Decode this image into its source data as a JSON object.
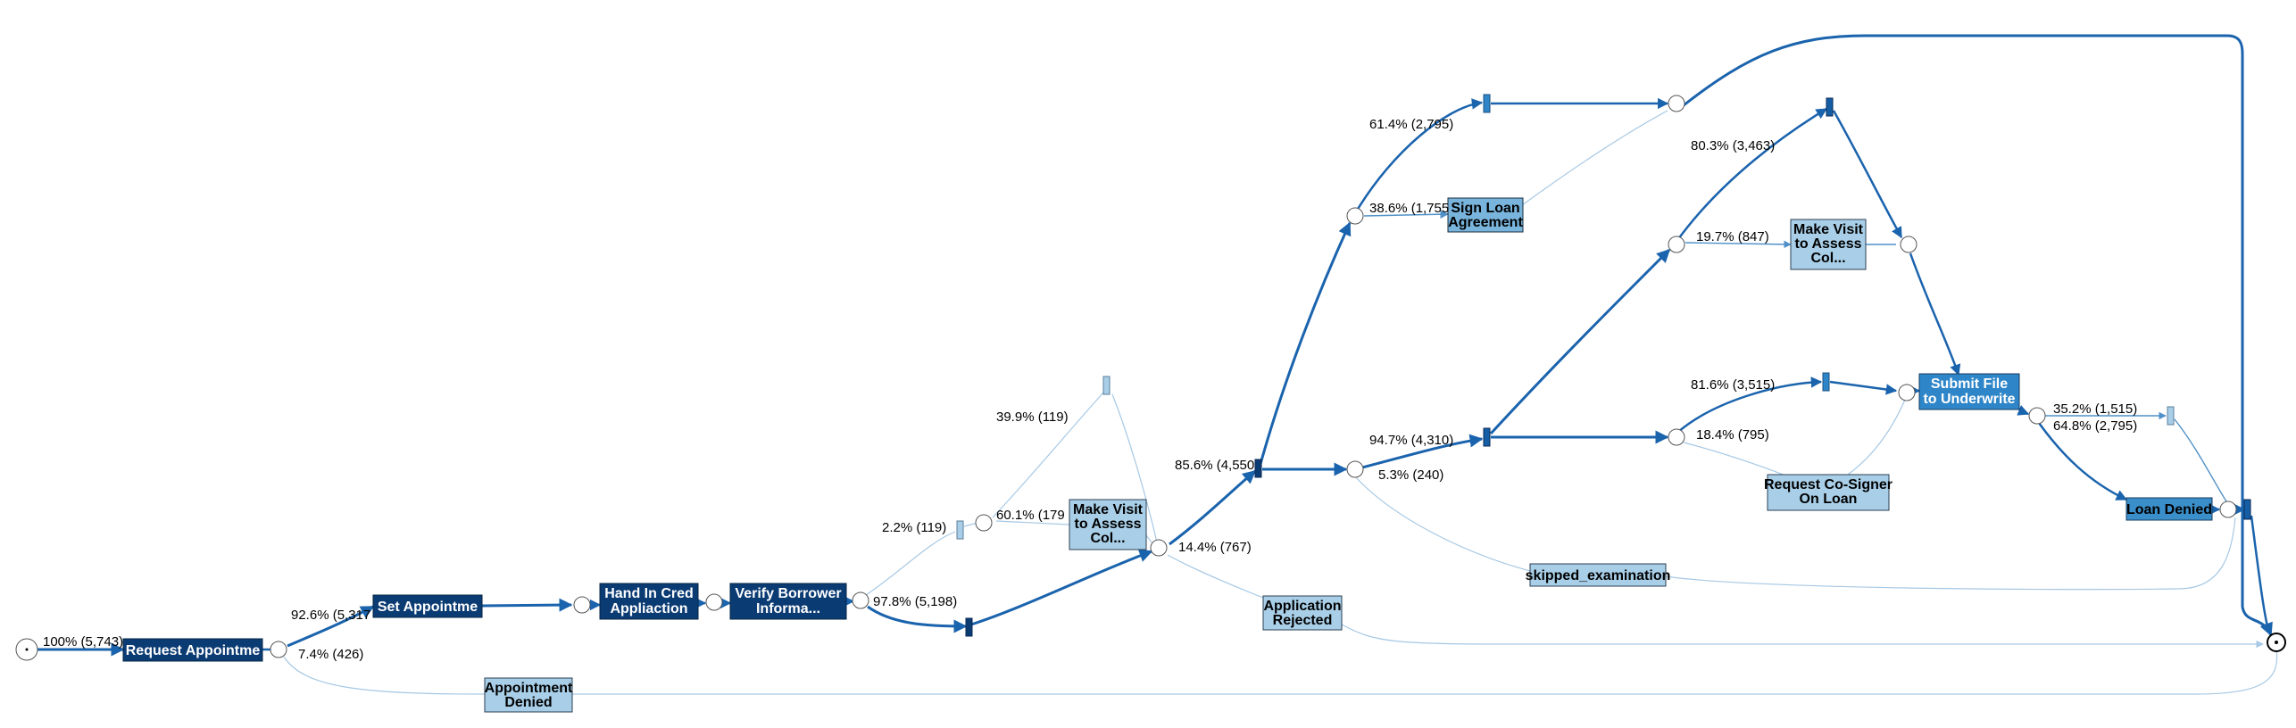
{
  "colors": {
    "dark": "#0b3b73",
    "medium": "#155ea6",
    "blue": "#2e86c9",
    "light": "#a9cfe8",
    "edge_strong": "#1a63ad",
    "edge_mid": "#4f90c8",
    "edge_light": "#a6c8e4"
  },
  "activities": {
    "request_appointment": "Request Appointme",
    "set_appointment": "Set Appointme",
    "hand_in_credit": [
      "Hand In Cred",
      "Appliaction"
    ],
    "verify_borrower": [
      "Verify Borrower",
      "Informa..."
    ],
    "make_visit_1": [
      "Make Visit",
      "to Assess",
      "Col..."
    ],
    "application_rejected": [
      "Application",
      "Rejected"
    ],
    "appointment_denied": [
      "Appointment",
      "Denied"
    ],
    "sign_loan": [
      "Sign Loan",
      "Agreement"
    ],
    "make_visit_2": [
      "Make Visit",
      "to Assess",
      "Col..."
    ],
    "submit_file": [
      "Submit File",
      "to Underwrite"
    ],
    "request_cosigner": [
      "Request Co-Signer",
      "On Loan"
    ],
    "loan_denied": "Loan Denied",
    "skipped_examination": "skipped_examination"
  },
  "edge_labels": {
    "start": "100% (5,743)",
    "set_appt": "92.6% (5,317",
    "appt_denied": "7.4% (426)",
    "verify_main": "97.8% (5,198)",
    "verify_branch": "2.2% (119)",
    "branch_up": "39.9% (119)",
    "make_visit_1": "60.1% (179",
    "rejected": "14.4% (767)",
    "continue": "85.6% (4,550",
    "sign_top": "61.4% (2,795)",
    "sign_loan": "38.6% (1,755",
    "main_and": "94.7% (4,310)",
    "skipped": "5.3% (240)",
    "upper_direct": "80.3% (3,463)",
    "make_visit_2": "19.7% (847)",
    "lower_direct": "81.6% (3,515)",
    "cosigner": "18.4% (795)",
    "submit_up": "35.2% (1,515)",
    "loan_denied": "64.8% (2,795)"
  }
}
